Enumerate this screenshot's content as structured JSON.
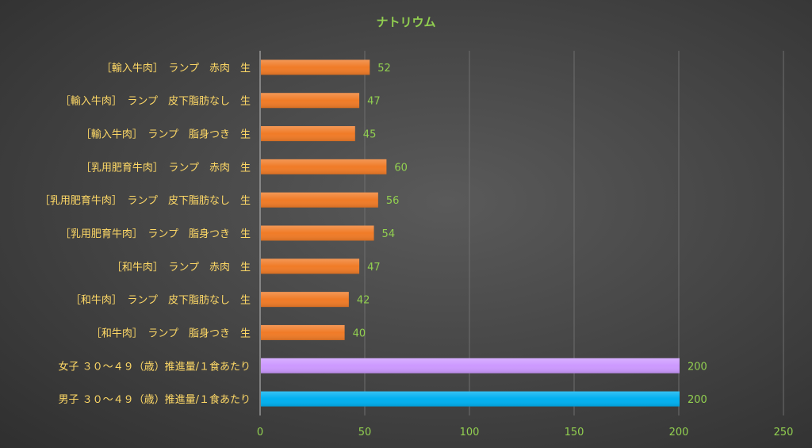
{
  "chart_data": {
    "type": "bar",
    "orientation": "horizontal",
    "title": "ナトリウム",
    "xlim": [
      0,
      250
    ],
    "x_ticks": [
      "0",
      "50",
      "100",
      "150",
      "200",
      "250"
    ],
    "grid": true,
    "legend": "none",
    "categories": [
      "［輸入牛肉］　ランプ　赤肉　生",
      "［輸入牛肉］　ランプ　皮下脂肪なし　生",
      "［輸入牛肉］　ランプ　脂身つき　生",
      "［乳用肥育牛肉］　ランプ　赤肉　生",
      "［乳用肥育牛肉］　ランプ　皮下脂肪なし　生",
      "［乳用肥育牛肉］　ランプ　脂身つき　生",
      "［和牛肉］　ランプ　赤肉　生",
      "［和牛肉］　ランプ　皮下脂肪なし　生",
      "［和牛肉］　ランプ　脂身つき　生",
      "女子 ３０～４９（歳）推進量/１食あたり",
      "男子 ３０～４９（歳）推進量/１食あたり"
    ],
    "values": [
      52,
      47,
      45,
      60,
      56,
      54,
      47,
      42,
      40,
      200,
      200
    ],
    "value_labels": [
      "52",
      "47",
      "45",
      "60",
      "56",
      "54",
      "47",
      "42",
      "40",
      "200",
      "200"
    ],
    "bar_colors": [
      "#f07b27",
      "#f07b27",
      "#f07b27",
      "#f07b27",
      "#f07b27",
      "#f07b27",
      "#f07b27",
      "#f07b27",
      "#f07b27",
      "#cc99ff",
      "#00b0f0"
    ]
  }
}
